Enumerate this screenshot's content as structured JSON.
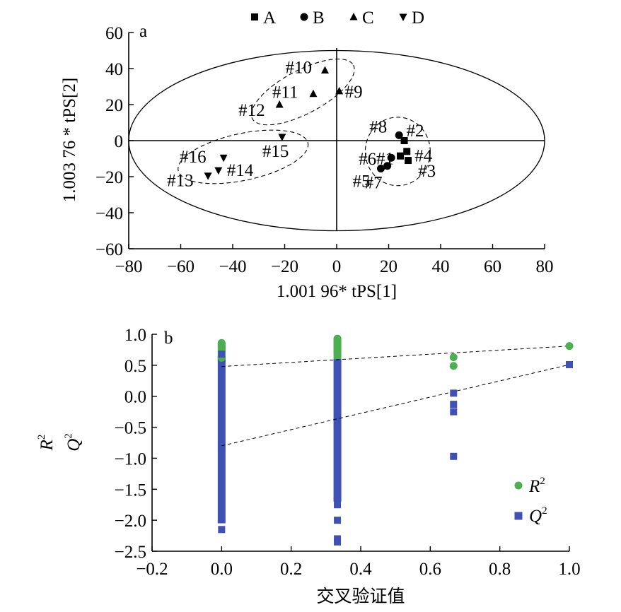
{
  "chart_data": [
    {
      "type": "scatter",
      "panel_label": "a",
      "xlabel": "1.001 96* tPS[1]",
      "ylabel": "1.003 76 * tPS[2]",
      "xlim": [
        -80,
        80
      ],
      "ylim": [
        -60,
        60
      ],
      "xticks": [
        "−80",
        "−60",
        "−40",
        "−20",
        "0",
        "20",
        "40",
        "60",
        "80"
      ],
      "yticks": [
        "60",
        "40",
        "20",
        "0",
        "−20",
        "−40",
        "−60"
      ],
      "legend": {
        "placement": "top",
        "entries": [
          "A",
          "B",
          "C",
          "D"
        ]
      },
      "legend_markers": [
        "square",
        "circle",
        "triangle-up",
        "triangle-down"
      ],
      "series": [
        {
          "name": "A",
          "marker": "square",
          "points": [
            {
              "label": "#1",
              "x": 24.5,
              "y": -8.5
            },
            {
              "label": "#2",
              "x": 26,
              "y": 0
            },
            {
              "label": "#3",
              "x": 27.5,
              "y": -11
            },
            {
              "label": "#4",
              "x": 27,
              "y": -6
            }
          ]
        },
        {
          "name": "B",
          "marker": "circle",
          "points": [
            {
              "label": "#5",
              "x": 17,
              "y": -15.5
            },
            {
              "label": "#6",
              "x": 21,
              "y": -9.5
            },
            {
              "label": "#7",
              "x": 19.5,
              "y": -14
            },
            {
              "label": "#8",
              "x": 24,
              "y": 3
            }
          ]
        },
        {
          "name": "C",
          "marker": "triangle-up",
          "points": [
            {
              "label": "#9",
              "x": 1,
              "y": 27.5
            },
            {
              "label": "#10",
              "x": -4.5,
              "y": 39
            },
            {
              "label": "#11",
              "x": -9,
              "y": 26
            },
            {
              "label": "#12",
              "x": -22,
              "y": 20
            }
          ]
        },
        {
          "name": "D",
          "marker": "triangle-down",
          "points": [
            {
              "label": "#13",
              "x": -49.5,
              "y": -19.5
            },
            {
              "label": "#14",
              "x": -45.5,
              "y": -16.5
            },
            {
              "label": "#15",
              "x": -21,
              "y": 2
            },
            {
              "label": "#16",
              "x": -43.5,
              "y": -9.5
            }
          ]
        }
      ],
      "ellipses": [
        {
          "style": "solid",
          "cx": 0,
          "cy": 0,
          "rx": 80,
          "ry": 50
        },
        {
          "style": "dashed",
          "group": "A+B",
          "cx": 23.5,
          "cy": -6,
          "rx": 12.5,
          "ry": 19
        },
        {
          "style": "dashed",
          "group": "C",
          "cx": -13,
          "cy": 27,
          "rx": 22,
          "ry": 12,
          "angle": -28
        },
        {
          "style": "dashed",
          "group": "D",
          "cx": -36,
          "cy": -9,
          "rx": 25.5,
          "ry": 13,
          "angle": -12
        }
      ]
    },
    {
      "type": "scatter",
      "panel_label": "b",
      "xlabel": "交叉验证值",
      "ylabel_r2": "R",
      "ylabel_q2": "Q",
      "ylabel_sup": "2",
      "xlim": [
        -0.2,
        1.0
      ],
      "ylim": [
        -2.5,
        1.0
      ],
      "xticks": [
        "−0.2",
        "0.0",
        "0.2",
        "0.4",
        "0.6",
        "0.8",
        "1.0"
      ],
      "yticks": [
        "1.0",
        "0.5",
        "0.0",
        "−0.5",
        "−1.0",
        "−1.5",
        "−2.0",
        "−2.5"
      ],
      "legend": {
        "placement": "bottom-right",
        "entries": [
          {
            "name": "R",
            "sup": "2",
            "marker": "circle",
            "color": "#4caf50"
          },
          {
            "name": "Q",
            "sup": "2",
            "marker": "square",
            "color": "#3f51b5"
          }
        ]
      },
      "series": [
        {
          "name": "R²",
          "marker": "circle",
          "color": "#4caf50",
          "points": [
            [
              0,
              0.86
            ],
            [
              0,
              0.83
            ],
            [
              0,
              0.8
            ],
            [
              0,
              0.77
            ],
            [
              0,
              0.72
            ],
            [
              0,
              0.62
            ],
            [
              0.333,
              0.93
            ],
            [
              0.333,
              0.9
            ],
            [
              0.333,
              0.87
            ],
            [
              0.333,
              0.84
            ],
            [
              0.333,
              0.81
            ],
            [
              0.333,
              0.78
            ],
            [
              0.333,
              0.75
            ],
            [
              0.333,
              0.72
            ],
            [
              0.667,
              0.63
            ],
            [
              0.667,
              0.49
            ],
            [
              1.0,
              0.81
            ]
          ],
          "column_ranges": [
            {
              "x": 0,
              "y_from": 0.55,
              "y_to": 0.86
            },
            {
              "x": 0.333,
              "y_from": 0.6,
              "y_to": 0.93
            }
          ]
        },
        {
          "name": "Q²",
          "marker": "square",
          "color": "#3f51b5",
          "points": [
            [
              0,
              0.68
            ],
            [
              0,
              -2.15
            ],
            [
              0.333,
              -1.75
            ],
            [
              0.333,
              -2.0
            ],
            [
              0.333,
              -2.3
            ],
            [
              0.333,
              -2.35
            ],
            [
              0.667,
              0.05
            ],
            [
              0.667,
              -0.13
            ],
            [
              0.667,
              -0.25
            ],
            [
              0.667,
              -0.97
            ],
            [
              1.0,
              0.51
            ]
          ],
          "column_ranges": [
            {
              "x": 0,
              "y_from": -2.05,
              "y_to": 0.65
            },
            {
              "x": 0.333,
              "y_from": -1.7,
              "y_to": 0.6
            }
          ]
        }
      ],
      "regression_lines": [
        {
          "name": "R²",
          "from": [
            0,
            0.48
          ],
          "to": [
            1.0,
            0.81
          ]
        },
        {
          "name": "Q²",
          "from": [
            0,
            -0.8
          ],
          "to": [
            1.0,
            0.51
          ]
        }
      ]
    }
  ]
}
